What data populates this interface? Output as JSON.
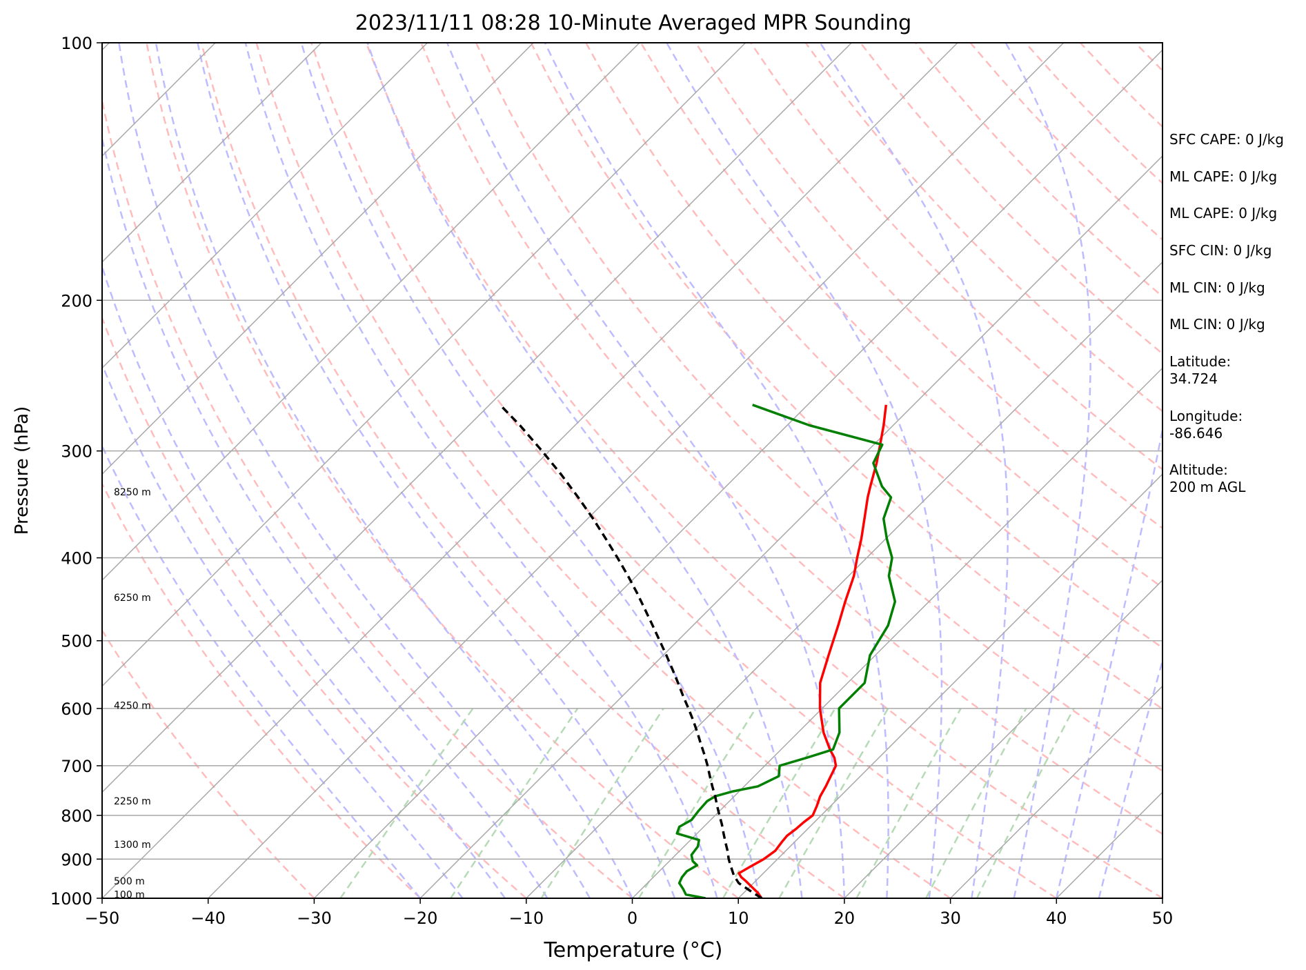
{
  "chart_data": {
    "type": "skew-t",
    "title": "2023/11/11 08:28 10-Minute Averaged MPR Sounding",
    "xlabel": "Temperature (°C)",
    "ylabel": "Pressure (hPa)",
    "xlim": [
      -50,
      50
    ],
    "ylim": [
      1000,
      100
    ],
    "y_scale": "log",
    "x_ticks": [
      -50,
      -40,
      -30,
      -20,
      -10,
      0,
      10,
      20,
      30,
      40,
      50
    ],
    "x_tick_labels": [
      "−50",
      "−40",
      "−30",
      "−20",
      "−10",
      "0",
      "10",
      "20",
      "30",
      "40",
      "50"
    ],
    "y_ticks": [
      1000,
      900,
      800,
      700,
      600,
      500,
      400,
      300,
      200,
      100
    ],
    "y_tick_labels": [
      "1000",
      "900",
      "800",
      "700",
      "600",
      "500",
      "400",
      "300",
      "200",
      "100"
    ],
    "grid": true,
    "colors": {
      "temperature": "#ff0000",
      "dewpoint": "#007f00",
      "parcel": "#000000",
      "isotherm": "#a8a8a8",
      "dry_adiabat": "#ffbcbc",
      "moist_adiabat": "#bcbcff",
      "mixing_ratio": "#b6dab6"
    },
    "height_labels": [
      {
        "text": "100 m",
        "pressure": 990
      },
      {
        "text": "500 m",
        "pressure": 955
      },
      {
        "text": "1300 m",
        "pressure": 865
      },
      {
        "text": "2250 m",
        "pressure": 770
      },
      {
        "text": "4250 m",
        "pressure": 595
      },
      {
        "text": "6250 m",
        "pressure": 445
      },
      {
        "text": "8250 m",
        "pressure": 335
      }
    ],
    "series": [
      {
        "key": "temperature",
        "pressure": [
          1000,
          985,
          970,
          955,
          945,
          935,
          920,
          900,
          880,
          860,
          845,
          830,
          815,
          800,
          780,
          760,
          740,
          720,
          700,
          685,
          670,
          640,
          600,
          560,
          520,
          480,
          450,
          420,
          400,
          380,
          360,
          340,
          330,
          310,
          295,
          280,
          265
        ],
        "values": [
          12.2,
          11.3,
          10.2,
          9.1,
          8.3,
          7.7,
          8.1,
          8.7,
          9.0,
          8.8,
          8.7,
          8.9,
          9.0,
          9.2,
          8.7,
          8.1,
          7.7,
          7.2,
          6.7,
          5.8,
          4.6,
          2.4,
          -0.2,
          -2.6,
          -4.4,
          -6.3,
          -7.9,
          -9.5,
          -10.9,
          -12.3,
          -13.9,
          -15.6,
          -16.4,
          -18.0,
          -19.4,
          -20.9,
          -22.6
        ]
      },
      {
        "key": "dewpoint",
        "pressure": [
          1000,
          990,
          975,
          960,
          945,
          930,
          915,
          905,
          890,
          870,
          855,
          840,
          825,
          810,
          790,
          770,
          760,
          750,
          740,
          720,
          700,
          685,
          670,
          640,
          600,
          560,
          520,
          480,
          450,
          420,
          400,
          380,
          360,
          340,
          330,
          310,
          295,
          280,
          265
        ],
        "values": [
          6.9,
          4.7,
          3.9,
          3.0,
          2.7,
          2.6,
          3.0,
          2.2,
          1.5,
          1.3,
          0.8,
          -1.9,
          -2.3,
          -1.8,
          -2.0,
          -2.1,
          -1.8,
          -0.6,
          1.3,
          2.3,
          1.4,
          3.2,
          4.9,
          3.9,
          1.6,
          1.6,
          -0.5,
          -1.6,
          -3.2,
          -6.2,
          -7.6,
          -9.9,
          -12.1,
          -13.4,
          -15.3,
          -18.3,
          -19.2,
          -27.9,
          -35.2
        ]
      },
      {
        "key": "parcel",
        "pressure": [
          1000,
          980,
          960,
          940,
          920,
          900,
          880,
          860,
          840,
          820,
          800,
          780,
          760,
          740,
          720,
          700,
          680,
          660,
          640,
          620,
          600,
          580,
          560,
          540,
          520,
          500,
          480,
          460,
          440,
          420,
          400,
          380,
          360,
          340,
          320,
          300,
          280,
          265
        ],
        "values": [
          12.2,
          10.4,
          8.6,
          7.4,
          6.4,
          5.4,
          4.5,
          3.5,
          2.5,
          1.5,
          0.4,
          -0.7,
          -1.8,
          -3.0,
          -4.2,
          -5.4,
          -6.7,
          -8.1,
          -9.5,
          -11.0,
          -12.6,
          -14.3,
          -16.0,
          -17.8,
          -19.7,
          -21.7,
          -23.8,
          -26.0,
          -28.3,
          -30.8,
          -33.5,
          -36.4,
          -39.5,
          -42.9,
          -46.6,
          -50.7,
          -55.2,
          -59.0
        ]
      }
    ],
    "stats": [
      {
        "label": "SFC CAPE: 0 J/kg"
      },
      {
        "label": "ML CAPE: 0 J/kg"
      },
      {
        "label": "ML CAPE: 0 J/kg"
      },
      {
        "label": "SFC CIN: 0 J/kg"
      },
      {
        "label": "ML CIN: 0 J/kg"
      },
      {
        "label": "ML CIN: 0 J/kg"
      },
      {
        "label": "Latitude:",
        "value": "34.724"
      },
      {
        "label": "Longitude:",
        "value": "-86.646"
      },
      {
        "label": "Altitude:",
        "value": "200 m AGL"
      }
    ]
  }
}
